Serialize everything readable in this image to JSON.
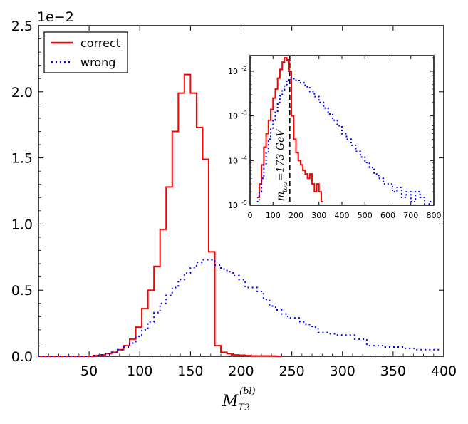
{
  "chart_data": {
    "main": {
      "type": "line",
      "xlabel_main": "M",
      "xlabel_sub": "T2",
      "xlabel_sup": "(bl)",
      "offset_label": "1e−2",
      "xlim": [
        0,
        400
      ],
      "ylim": [
        0,
        2.5
      ],
      "xticks": [
        50,
        100,
        150,
        200,
        250,
        300,
        350,
        400
      ],
      "xtick_labels": [
        "50",
        "100",
        "150",
        "200",
        "250",
        "300",
        "350",
        "400"
      ],
      "yticks": [
        0,
        0.5,
        1.0,
        1.5,
        2.0,
        2.5
      ],
      "ytick_labels": [
        "0.0",
        "0.5",
        "1.0",
        "1.5",
        "2.0",
        "2.5"
      ],
      "legend": {
        "position": "top-left",
        "entries": [
          "correct",
          "wrong"
        ]
      },
      "bin_width": 6,
      "series": [
        {
          "name": "correct",
          "color": "#ff0000",
          "style": "solid",
          "step_x": [
            0,
            6,
            12,
            18,
            24,
            30,
            36,
            42,
            48,
            54,
            60,
            66,
            72,
            78,
            84,
            90,
            96,
            102,
            108,
            114,
            120,
            126,
            132,
            138,
            144,
            150,
            156,
            162,
            168,
            174,
            180,
            186,
            192,
            198,
            204,
            210,
            216,
            222,
            228,
            234
          ],
          "step_y": [
            0,
            0,
            0,
            0,
            0,
            0,
            0,
            0,
            0,
            0.005,
            0.01,
            0.02,
            0.03,
            0.05,
            0.08,
            0.13,
            0.22,
            0.36,
            0.5,
            0.68,
            0.96,
            1.28,
            1.7,
            1.99,
            2.13,
            1.99,
            1.73,
            1.49,
            0.79,
            0.08,
            0.03,
            0.02,
            0.01,
            0.008,
            0.005,
            0.003,
            0.003,
            0.003,
            0.002,
            0.001
          ]
        },
        {
          "name": "wrong",
          "color": "#0000ff",
          "style": "dotted",
          "step_x": [
            0,
            6,
            12,
            18,
            24,
            30,
            36,
            42,
            48,
            54,
            60,
            66,
            72,
            78,
            84,
            90,
            96,
            102,
            108,
            114,
            120,
            126,
            132,
            138,
            144,
            150,
            156,
            162,
            168,
            174,
            180,
            186,
            192,
            198,
            204,
            210,
            216,
            222,
            228,
            234,
            240,
            246,
            252,
            258,
            264,
            270,
            276,
            282,
            288,
            294,
            300,
            306,
            312,
            318,
            324,
            330,
            336,
            342,
            348,
            354,
            360,
            366,
            372,
            378,
            384,
            390
          ],
          "step_y": [
            0,
            0,
            0,
            0,
            0,
            0,
            0,
            0,
            0,
            0.005,
            0.01,
            0.02,
            0.03,
            0.05,
            0.07,
            0.1,
            0.15,
            0.2,
            0.26,
            0.33,
            0.4,
            0.46,
            0.52,
            0.58,
            0.63,
            0.67,
            0.71,
            0.73,
            0.73,
            0.69,
            0.66,
            0.64,
            0.61,
            0.58,
            0.52,
            0.52,
            0.49,
            0.43,
            0.38,
            0.35,
            0.32,
            0.29,
            0.29,
            0.26,
            0.24,
            0.22,
            0.18,
            0.18,
            0.17,
            0.16,
            0.16,
            0.16,
            0.13,
            0.13,
            0.08,
            0.08,
            0.08,
            0.07,
            0.07,
            0.07,
            0.06,
            0.06,
            0.05,
            0.05,
            0.05,
            0.05
          ]
        }
      ]
    },
    "inset": {
      "type": "line",
      "yscale": "log",
      "xlim": [
        0,
        800
      ],
      "ylim_log10": [
        -5,
        -1.65
      ],
      "xticks": [
        0,
        100,
        200,
        300,
        400,
        500,
        600,
        700,
        800
      ],
      "xtick_labels": [
        "0",
        "100",
        "200",
        "300",
        "400",
        "500",
        "600",
        "700",
        "800"
      ],
      "ytick_exponents": [
        -2,
        -3,
        -4,
        -5
      ],
      "ytick_base": "10",
      "ytick_exp_labels": [
        "-2",
        "-3",
        "-4",
        "-5"
      ],
      "vline_x": 173,
      "annotation_main": "m",
      "annotation_sub": "top",
      "annotation_rest": " =173 GeV",
      "series": [
        {
          "name": "correct",
          "color": "#ff0000",
          "step_x": [
            30,
            40,
            50,
            60,
            70,
            80,
            90,
            100,
            110,
            120,
            130,
            140,
            150,
            160,
            170,
            180,
            190,
            200,
            210,
            220,
            230,
            240,
            250,
            260,
            270,
            280,
            290,
            300,
            310
          ],
          "step_y": [
            1.5e-05,
            3e-05,
            8e-05,
            0.0002,
            0.0004,
            0.0008,
            0.0014,
            0.0025,
            0.004,
            0.007,
            0.011,
            0.016,
            0.02,
            0.018,
            0.01,
            0.001,
            0.0003,
            0.00015,
            0.0001,
            8e-05,
            6e-05,
            5e-05,
            4e-05,
            5e-05,
            3e-05,
            2e-05,
            3e-05,
            2e-05,
            1.2e-05
          ]
        },
        {
          "name": "wrong",
          "color": "#0000ff",
          "step_x": [
            30,
            40,
            50,
            60,
            70,
            80,
            90,
            100,
            110,
            120,
            130,
            140,
            150,
            160,
            170,
            180,
            190,
            200,
            220,
            240,
            260,
            280,
            300,
            320,
            340,
            360,
            380,
            400,
            420,
            440,
            460,
            480,
            500,
            520,
            540,
            560,
            580,
            600,
            620,
            640,
            660,
            680,
            700,
            720,
            740,
            760,
            780
          ],
          "step_y": [
            1.2e-05,
            2e-05,
            4e-05,
            8e-05,
            0.00015,
            0.0003,
            0.0005,
            0.0008,
            0.0012,
            0.002,
            0.0028,
            0.0038,
            0.005,
            0.006,
            0.007,
            0.007,
            0.0068,
            0.0062,
            0.0055,
            0.0045,
            0.0035,
            0.0027,
            0.002,
            0.0015,
            0.0011,
            0.0008,
            0.0006,
            0.0004,
            0.0003,
            0.00022,
            0.00016,
            0.00012,
            9e-05,
            7e-05,
            5e-05,
            4e-05,
            3e-05,
            3e-05,
            2e-05,
            2.5e-05,
            1.5e-05,
            2e-05,
            1.2e-05,
            2e-05,
            1.5e-05,
            1e-05,
            1.2e-05
          ]
        }
      ]
    }
  }
}
